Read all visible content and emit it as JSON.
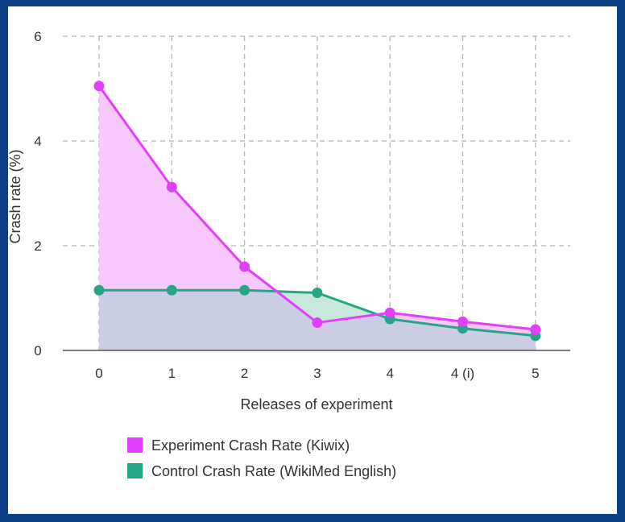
{
  "chart_data": {
    "type": "area",
    "categories": [
      "0",
      "1",
      "2",
      "3",
      "4",
      "4 (i)",
      "5"
    ],
    "series": [
      {
        "name": "Experiment Crash Rate (Kiwix)",
        "values": [
          5.05,
          3.12,
          1.6,
          0.53,
          0.72,
          0.55,
          0.4
        ],
        "color": "#e040fb",
        "fill": "#f7c8fb"
      },
      {
        "name": "Control Crash Rate (WikiMed English)",
        "values": [
          1.15,
          1.15,
          1.15,
          1.1,
          0.6,
          0.42,
          0.28
        ],
        "color": "#26a685",
        "fill": "#c8e8dc"
      }
    ],
    "overlap_fill": "#cbcde4",
    "xlabel": "Releases of experiment",
    "ylabel": "Crash rate (%)",
    "ylim": [
      0,
      6
    ],
    "yticks": [
      "0",
      "2",
      "4",
      "6"
    ],
    "grid": true,
    "legend_position": "bottom"
  }
}
